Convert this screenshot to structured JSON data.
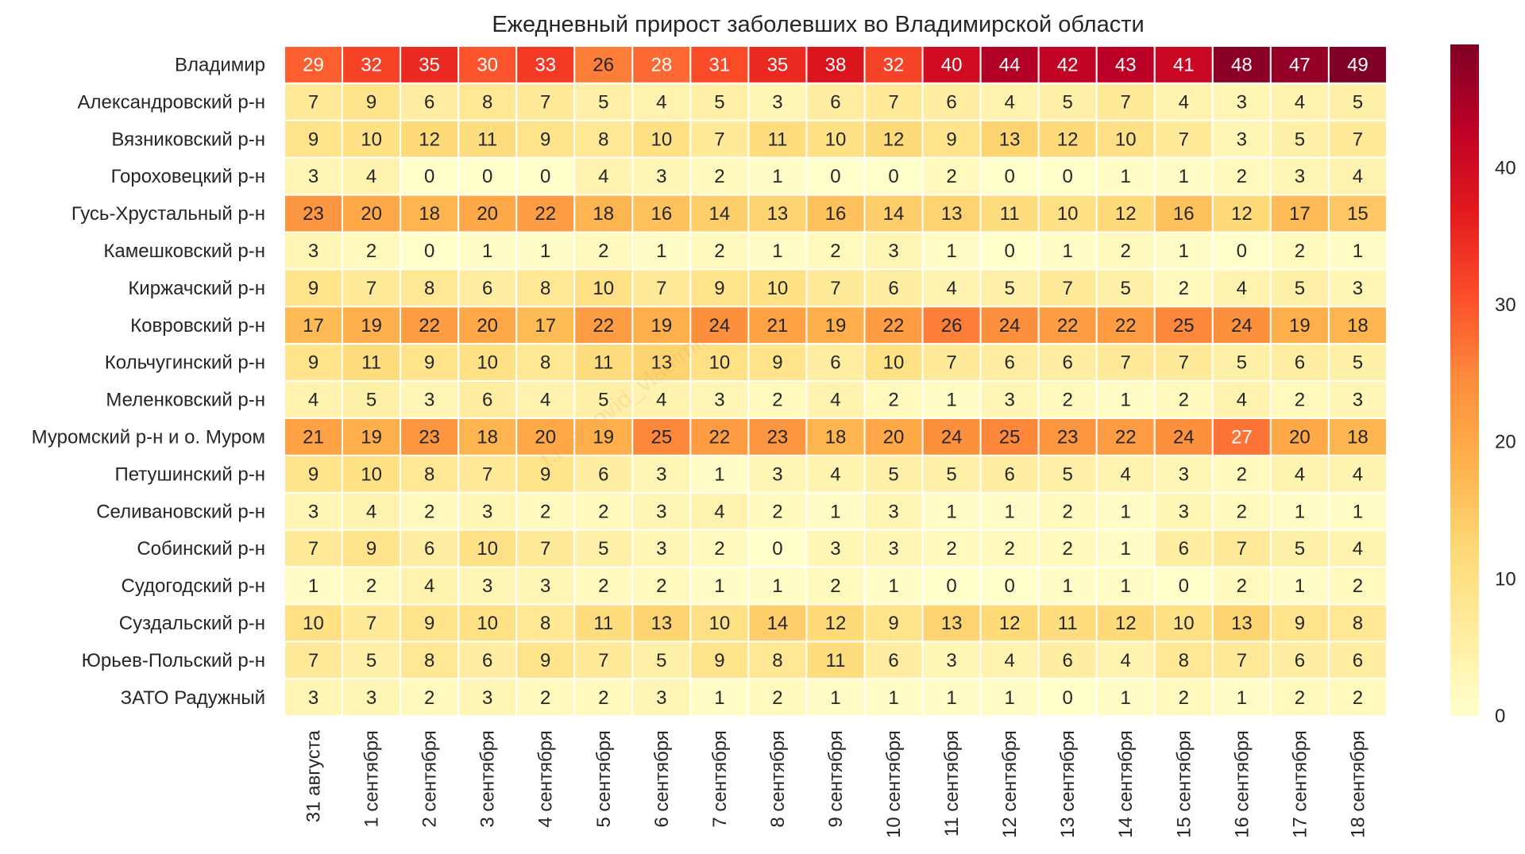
{
  "chart_data": {
    "type": "heatmap",
    "title": "Ежедневный прирост заболевших во Владимирской области",
    "xlabel": "",
    "ylabel": "",
    "watermark": "t.me/covid_vladimir",
    "colorbar": {
      "min": 0,
      "max": 49,
      "ticks": [
        0,
        10,
        20,
        30,
        40
      ]
    },
    "colormap": [
      "#ffffcc",
      "#ffeda0",
      "#fed976",
      "#feb24c",
      "#fd8d3c",
      "#fc4e2a",
      "#e31a1c",
      "#bd0026",
      "#800026"
    ],
    "x": [
      "31 августа",
      "1 сентября",
      "2 сентября",
      "3 сентября",
      "4 сентября",
      "5 сентября",
      "6 сентября",
      "7 сентября",
      "8 сентября",
      "9 сентября",
      "10 сентября",
      "11 сентября",
      "12 сентября",
      "13 сентября",
      "14 сентября",
      "15 сентября",
      "16 сентября",
      "17 сентября",
      "18 сентября"
    ],
    "y": [
      "Владимир",
      "Александровский р-н",
      "Вязниковский р-н",
      "Гороховецкий р-н",
      "Гусь-Хрустальный р-н",
      "Камешковский р-н",
      "Киржачский р-н",
      "Ковровский р-н",
      "Кольчугинский р-н",
      "Меленковский р-н",
      "Муромский р-н и о. Муром",
      "Петушинский р-н",
      "Селивановский р-н",
      "Собинский р-н",
      "Судогодский р-н",
      "Суздальский р-н",
      "Юрьев-Польский р-н",
      "ЗАТО Радужный"
    ],
    "values": [
      [
        29,
        32,
        35,
        30,
        33,
        26,
        28,
        31,
        35,
        38,
        32,
        40,
        44,
        42,
        43,
        41,
        48,
        47,
        49
      ],
      [
        7,
        9,
        6,
        8,
        7,
        5,
        4,
        5,
        3,
        6,
        7,
        6,
        4,
        5,
        7,
        4,
        3,
        4,
        5
      ],
      [
        9,
        10,
        12,
        11,
        9,
        8,
        10,
        7,
        11,
        10,
        12,
        9,
        13,
        12,
        10,
        7,
        3,
        5,
        7
      ],
      [
        3,
        4,
        0,
        0,
        0,
        4,
        3,
        2,
        1,
        0,
        0,
        2,
        0,
        0,
        1,
        1,
        2,
        3,
        4
      ],
      [
        23,
        20,
        18,
        20,
        22,
        18,
        16,
        14,
        13,
        16,
        14,
        13,
        11,
        10,
        12,
        16,
        12,
        17,
        15
      ],
      [
        3,
        2,
        0,
        1,
        1,
        2,
        1,
        2,
        1,
        2,
        3,
        1,
        0,
        1,
        2,
        1,
        0,
        2,
        1
      ],
      [
        9,
        7,
        8,
        6,
        8,
        10,
        7,
        9,
        10,
        7,
        6,
        4,
        5,
        7,
        5,
        2,
        4,
        5,
        3
      ],
      [
        17,
        19,
        22,
        20,
        17,
        22,
        19,
        24,
        21,
        19,
        22,
        26,
        24,
        22,
        22,
        25,
        24,
        19,
        18
      ],
      [
        9,
        11,
        9,
        10,
        8,
        11,
        13,
        10,
        9,
        6,
        10,
        7,
        6,
        6,
        7,
        7,
        5,
        6,
        5
      ],
      [
        4,
        5,
        3,
        6,
        4,
        5,
        4,
        3,
        2,
        4,
        2,
        1,
        3,
        2,
        1,
        2,
        4,
        2,
        3
      ],
      [
        21,
        19,
        23,
        18,
        20,
        19,
        25,
        22,
        23,
        18,
        20,
        24,
        25,
        23,
        22,
        24,
        27,
        20,
        18
      ],
      [
        9,
        10,
        8,
        7,
        9,
        6,
        3,
        1,
        3,
        4,
        5,
        5,
        6,
        5,
        4,
        3,
        2,
        4,
        4
      ],
      [
        3,
        4,
        2,
        3,
        2,
        2,
        3,
        4,
        2,
        1,
        3,
        1,
        1,
        2,
        1,
        3,
        2,
        1,
        1
      ],
      [
        7,
        9,
        6,
        10,
        7,
        5,
        3,
        2,
        0,
        3,
        3,
        2,
        2,
        2,
        1,
        6,
        7,
        5,
        4
      ],
      [
        1,
        2,
        4,
        3,
        3,
        2,
        2,
        1,
        1,
        2,
        1,
        0,
        0,
        1,
        1,
        0,
        2,
        1,
        2
      ],
      [
        10,
        7,
        9,
        10,
        8,
        11,
        13,
        10,
        14,
        12,
        9,
        13,
        12,
        11,
        12,
        10,
        13,
        9,
        8
      ],
      [
        7,
        5,
        8,
        6,
        9,
        7,
        5,
        9,
        8,
        11,
        6,
        3,
        4,
        6,
        4,
        8,
        7,
        6,
        6
      ],
      [
        3,
        3,
        2,
        3,
        2,
        2,
        3,
        1,
        2,
        1,
        1,
        1,
        1,
        0,
        1,
        2,
        1,
        2,
        2
      ]
    ]
  }
}
